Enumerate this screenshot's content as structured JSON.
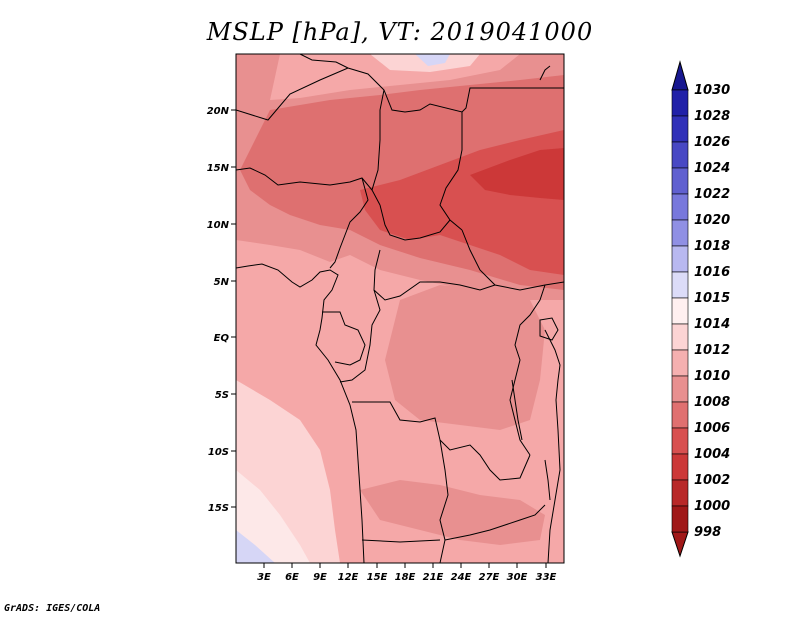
{
  "title": "MSLP [hPa], VT: 2019041000",
  "credit": "GrADS: IGES/COLA",
  "lat_labels": [
    "20N",
    "15N",
    "10N",
    "5N",
    "EQ",
    "5S",
    "10S",
    "15S"
  ],
  "lon_labels": [
    "3E",
    "6E",
    "9E",
    "12E",
    "15E",
    "18E",
    "21E",
    "24E",
    "27E",
    "30E",
    "33E"
  ],
  "colorbar": {
    "levels": [
      "1030",
      "1028",
      "1026",
      "1024",
      "1022",
      "1020",
      "1018",
      "1016",
      "1015",
      "1014",
      "1012",
      "1010",
      "1008",
      "1006",
      "1004",
      "1002",
      "1000",
      "998"
    ],
    "colors": [
      "#181890",
      "#2020a8",
      "#3030b8",
      "#4848c4",
      "#6060d0",
      "#7878dc",
      "#9090e4",
      "#b8b8f0",
      "#dcdcf8",
      "#fff0f0",
      "#fcd4d4",
      "#f5b0b0",
      "#e89090",
      "#e07070",
      "#d85050",
      "#cc3838",
      "#b82828",
      "#a01818"
    ]
  },
  "field_colors": {
    "p1012": "#fcd4d4",
    "p1010": "#f5a8a8",
    "p1008": "#e89090",
    "p1006": "#de7070",
    "p1004": "#d85050",
    "p1002": "#cc3838",
    "p1014": "#fde8e8",
    "p1016": "#d6d6f6"
  }
}
